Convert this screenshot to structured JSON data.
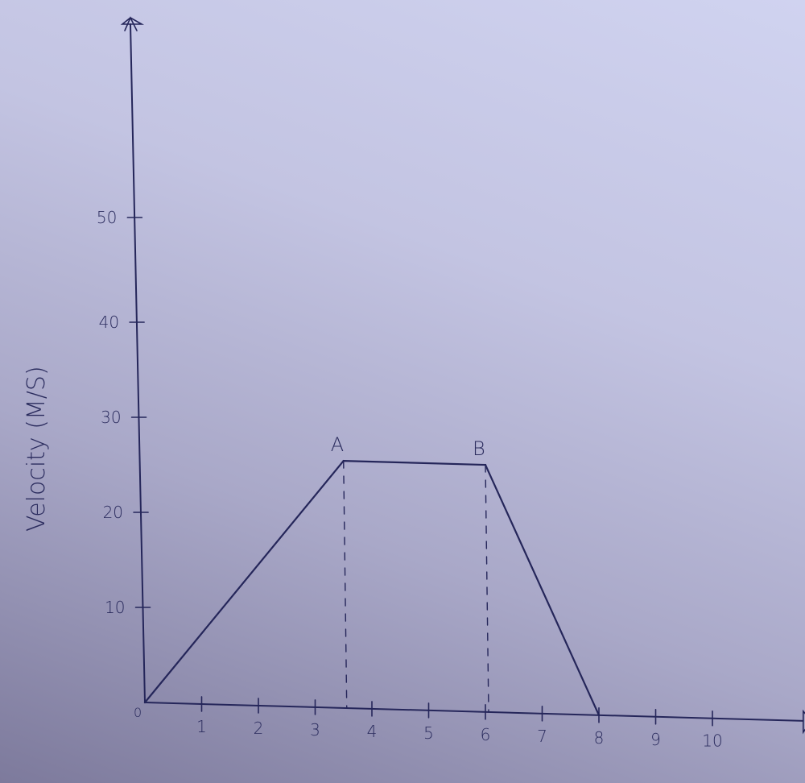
{
  "chart_data": {
    "type": "line",
    "title": "",
    "xlabel": "",
    "ylabel": "Velocity (M/S)",
    "x_ticks": [
      0,
      1,
      2,
      3,
      4,
      5,
      6,
      7,
      8,
      9,
      10
    ],
    "y_ticks": [
      10,
      20,
      30,
      40,
      50
    ],
    "origin_label": "0",
    "xlim": [
      0,
      11.5
    ],
    "ylim": [
      0,
      60
    ],
    "grid": false,
    "series": [
      {
        "x": [
          0,
          3.5,
          6,
          8
        ],
        "y": [
          0,
          26,
          26,
          0
        ]
      }
    ],
    "annotations": [
      {
        "label": "A",
        "x": 3.5,
        "y": 26
      },
      {
        "label": "B",
        "x": 6,
        "y": 26
      }
    ],
    "dashed_drops_at_x": [
      3.5,
      6
    ],
    "ink_color": "#25265a"
  }
}
